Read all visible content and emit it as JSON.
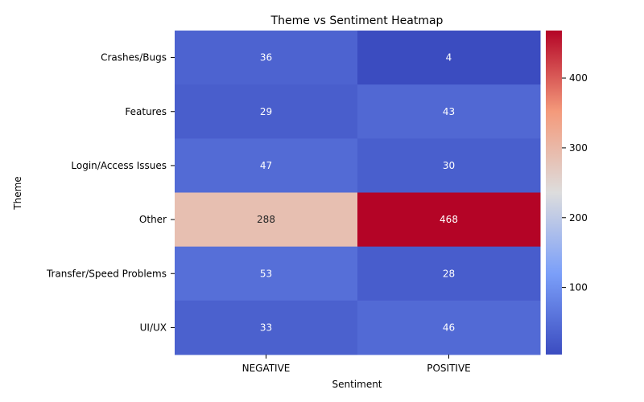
{
  "chart_data": {
    "type": "heatmap",
    "title": "Theme vs Sentiment Heatmap",
    "xlabel": "Sentiment",
    "ylabel": "Theme",
    "x_categories": [
      "NEGATIVE",
      "POSITIVE"
    ],
    "y_categories": [
      "Crashes/Bugs",
      "Features",
      "Login/Access Issues",
      "Other",
      "Transfer/Speed Problems",
      "UI/UX"
    ],
    "values": [
      [
        36,
        4
      ],
      [
        29,
        43
      ],
      [
        47,
        30
      ],
      [
        288,
        468
      ],
      [
        53,
        28
      ],
      [
        33,
        46
      ]
    ],
    "colormap": "coolwarm",
    "color_range": [
      4,
      468
    ],
    "colorbar_ticks": [
      "100",
      "200",
      "300",
      "400"
    ],
    "colorbar_tick_values": [
      100,
      200,
      300,
      400
    ],
    "annotations": true,
    "grid": false
  }
}
